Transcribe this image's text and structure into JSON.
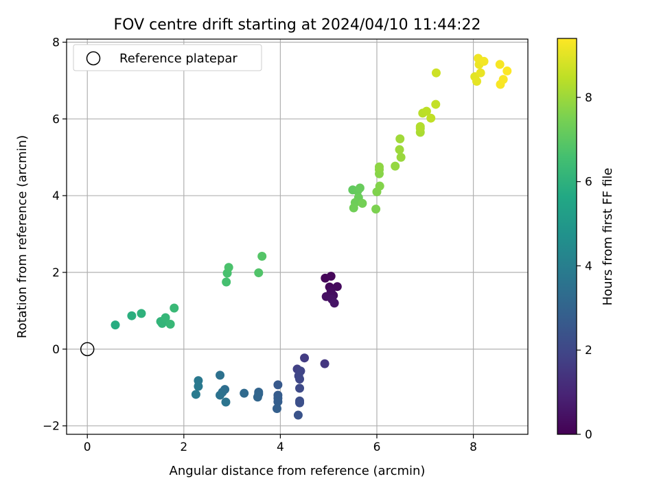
{
  "chart_data": {
    "type": "scatter",
    "title": "FOV centre drift starting at 2024/04/10 11:44:22",
    "xlabel": "Angular distance from reference (arcmin)",
    "ylabel": "Rotation from reference (arcmin)",
    "xlim": [
      -0.43,
      9.13
    ],
    "ylim": [
      -2.22,
      8.08
    ],
    "xticks": [
      0,
      2,
      4,
      6,
      8
    ],
    "yticks": [
      -2,
      0,
      2,
      4,
      6,
      8
    ],
    "grid": true,
    "legend": {
      "placement": "top-left",
      "entries": [
        "Reference platepar"
      ]
    },
    "reference_point": {
      "label": "Reference platepar",
      "x": 0,
      "y": 0
    },
    "colorbar": {
      "label": "Hours from first FF file",
      "min": 0,
      "max": 9.4,
      "ticks": [
        0,
        2,
        4,
        6,
        8
      ],
      "colormap": "viridis"
    },
    "points": [
      {
        "x": 4.93,
        "y": 1.85,
        "h": 0.1
      },
      {
        "x": 5.05,
        "y": 1.9,
        "h": 0.15
      },
      {
        "x": 5.02,
        "y": 1.62,
        "h": 0.2
      },
      {
        "x": 5.18,
        "y": 1.63,
        "h": 0.25
      },
      {
        "x": 5.05,
        "y": 1.5,
        "h": 0.3
      },
      {
        "x": 5.1,
        "y": 1.4,
        "h": 0.35
      },
      {
        "x": 4.95,
        "y": 1.37,
        "h": 0.4
      },
      {
        "x": 5.07,
        "y": 1.3,
        "h": 0.45
      },
      {
        "x": 5.12,
        "y": 1.2,
        "h": 0.5
      },
      {
        "x": 4.92,
        "y": -0.38,
        "h": 1.5
      },
      {
        "x": 4.5,
        "y": -0.23,
        "h": 1.65
      },
      {
        "x": 4.35,
        "y": -0.52,
        "h": 1.8
      },
      {
        "x": 4.42,
        "y": -0.57,
        "h": 1.9
      },
      {
        "x": 4.38,
        "y": -0.7,
        "h": 1.95
      },
      {
        "x": 4.4,
        "y": -0.78,
        "h": 2.0
      },
      {
        "x": 4.4,
        "y": -1.02,
        "h": 2.1
      },
      {
        "x": 4.4,
        "y": -1.35,
        "h": 2.2
      },
      {
        "x": 4.4,
        "y": -1.4,
        "h": 2.3
      },
      {
        "x": 4.37,
        "y": -1.72,
        "h": 2.4
      },
      {
        "x": 3.95,
        "y": -0.93,
        "h": 2.6
      },
      {
        "x": 3.95,
        "y": -1.2,
        "h": 2.7
      },
      {
        "x": 3.95,
        "y": -1.28,
        "h": 2.75
      },
      {
        "x": 3.95,
        "y": -1.37,
        "h": 2.8
      },
      {
        "x": 3.93,
        "y": -1.55,
        "h": 2.85
      },
      {
        "x": 3.55,
        "y": -1.12,
        "h": 3.0
      },
      {
        "x": 3.55,
        "y": -1.17,
        "h": 3.05
      },
      {
        "x": 3.53,
        "y": -1.25,
        "h": 3.1
      },
      {
        "x": 3.25,
        "y": -1.15,
        "h": 3.25
      },
      {
        "x": 2.85,
        "y": -1.05,
        "h": 3.4
      },
      {
        "x": 2.8,
        "y": -1.12,
        "h": 3.45
      },
      {
        "x": 2.75,
        "y": -0.68,
        "h": 3.5
      },
      {
        "x": 2.75,
        "y": -1.2,
        "h": 3.55
      },
      {
        "x": 2.87,
        "y": -1.38,
        "h": 3.6
      },
      {
        "x": 2.3,
        "y": -0.82,
        "h": 3.75
      },
      {
        "x": 2.3,
        "y": -0.97,
        "h": 3.8
      },
      {
        "x": 2.25,
        "y": -1.18,
        "h": 3.85
      },
      {
        "x": 0.58,
        "y": 0.63,
        "h": 5.8
      },
      {
        "x": 0.92,
        "y": 0.87,
        "h": 5.9
      },
      {
        "x": 1.12,
        "y": 0.93,
        "h": 6.0
      },
      {
        "x": 1.52,
        "y": 0.72,
        "h": 6.1
      },
      {
        "x": 1.55,
        "y": 0.67,
        "h": 6.15
      },
      {
        "x": 1.62,
        "y": 0.82,
        "h": 6.2
      },
      {
        "x": 1.72,
        "y": 0.65,
        "h": 6.25
      },
      {
        "x": 1.8,
        "y": 1.07,
        "h": 6.3
      },
      {
        "x": 2.88,
        "y": 1.75,
        "h": 6.6
      },
      {
        "x": 2.9,
        "y": 1.98,
        "h": 6.65
      },
      {
        "x": 2.93,
        "y": 2.13,
        "h": 6.7
      },
      {
        "x": 3.55,
        "y": 1.99,
        "h": 6.8
      },
      {
        "x": 3.62,
        "y": 2.42,
        "h": 6.85
      },
      {
        "x": 5.5,
        "y": 4.15,
        "h": 7.1
      },
      {
        "x": 5.6,
        "y": 4.12,
        "h": 7.15
      },
      {
        "x": 5.65,
        "y": 4.2,
        "h": 7.2
      },
      {
        "x": 5.62,
        "y": 3.95,
        "h": 7.25
      },
      {
        "x": 5.55,
        "y": 3.82,
        "h": 7.3
      },
      {
        "x": 5.52,
        "y": 3.68,
        "h": 7.35
      },
      {
        "x": 5.7,
        "y": 3.8,
        "h": 7.4
      },
      {
        "x": 5.98,
        "y": 3.65,
        "h": 7.55
      },
      {
        "x": 6.0,
        "y": 4.1,
        "h": 7.6
      },
      {
        "x": 6.06,
        "y": 4.25,
        "h": 7.65
      },
      {
        "x": 6.05,
        "y": 4.57,
        "h": 7.7
      },
      {
        "x": 6.05,
        "y": 4.68,
        "h": 7.75
      },
      {
        "x": 6.05,
        "y": 4.75,
        "h": 7.8
      },
      {
        "x": 6.38,
        "y": 4.77,
        "h": 7.9
      },
      {
        "x": 6.5,
        "y": 5.0,
        "h": 7.95
      },
      {
        "x": 6.47,
        "y": 5.2,
        "h": 8.0
      },
      {
        "x": 6.48,
        "y": 5.48,
        "h": 8.05
      },
      {
        "x": 6.9,
        "y": 5.65,
        "h": 8.2
      },
      {
        "x": 6.9,
        "y": 5.75,
        "h": 8.25
      },
      {
        "x": 6.9,
        "y": 5.8,
        "h": 8.3
      },
      {
        "x": 6.95,
        "y": 6.15,
        "h": 8.4
      },
      {
        "x": 7.03,
        "y": 6.2,
        "h": 8.45
      },
      {
        "x": 7.12,
        "y": 6.02,
        "h": 8.5
      },
      {
        "x": 7.22,
        "y": 6.38,
        "h": 8.55
      },
      {
        "x": 7.23,
        "y": 7.2,
        "h": 8.7
      },
      {
        "x": 8.03,
        "y": 7.1,
        "h": 9.0
      },
      {
        "x": 8.07,
        "y": 6.98,
        "h": 9.05
      },
      {
        "x": 8.15,
        "y": 7.2,
        "h": 9.1
      },
      {
        "x": 8.12,
        "y": 7.42,
        "h": 9.15
      },
      {
        "x": 8.1,
        "y": 7.58,
        "h": 9.2
      },
      {
        "x": 8.22,
        "y": 7.5,
        "h": 9.25
      },
      {
        "x": 8.55,
        "y": 7.42,
        "h": 9.3
      },
      {
        "x": 8.56,
        "y": 6.9,
        "h": 9.32
      },
      {
        "x": 8.62,
        "y": 7.03,
        "h": 9.34
      },
      {
        "x": 8.7,
        "y": 7.25,
        "h": 9.38
      }
    ]
  }
}
